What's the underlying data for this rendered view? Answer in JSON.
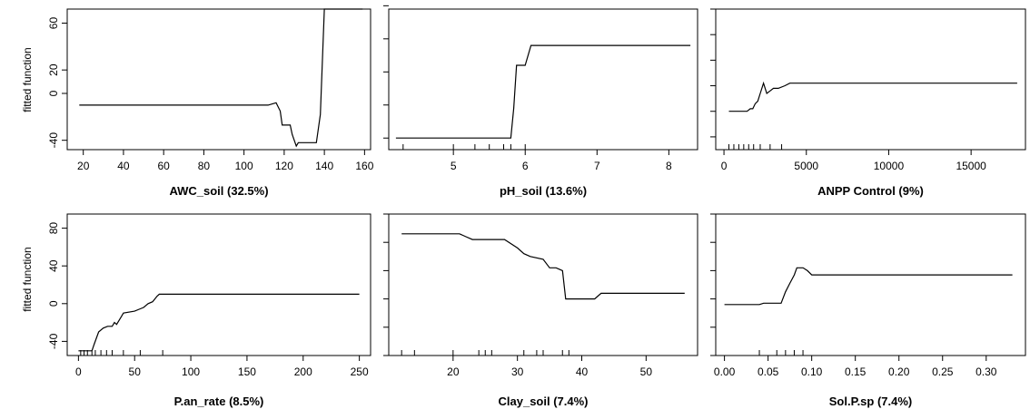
{
  "ylabel": "fitted function",
  "chart_data": [
    {
      "type": "line",
      "xlabel": "AWC_soil  (32.5%)",
      "ylabel": "fitted function",
      "xlim": [
        12,
        163
      ],
      "ylim": [
        -48,
        72
      ],
      "xticks": [
        20,
        40,
        60,
        80,
        100,
        120,
        140,
        160
      ],
      "yticks": [
        -40,
        0,
        20,
        60
      ],
      "show_yticklabels": true,
      "rug": [],
      "x": [
        18,
        112,
        116,
        118,
        119,
        123,
        124,
        126,
        127,
        128,
        130,
        136,
        138,
        140,
        159
      ],
      "y": [
        -10,
        -10,
        -8,
        -15,
        -27,
        -27,
        -35,
        -45,
        -42,
        -42,
        -42,
        -42,
        -18,
        72,
        72
      ]
    },
    {
      "type": "line",
      "xlabel": "pH_soil  (13.6%)",
      "ylabel": "",
      "xlim": [
        4.1,
        8.4
      ],
      "ylim": [
        -7,
        78
      ],
      "xticks": [
        5,
        6,
        7,
        8
      ],
      "yticks": [
        0,
        20,
        40,
        60,
        80
      ],
      "show_yticklabels": false,
      "rug": [
        4.3,
        5.0,
        5.3,
        5.5,
        5.7,
        5.8,
        6.0
      ],
      "x": [
        4.2,
        5.8,
        5.84,
        5.88,
        5.92,
        6.0,
        6.08,
        8.3
      ],
      "y": [
        0,
        0,
        18,
        44,
        44,
        44,
        56,
        56
      ]
    },
    {
      "type": "line",
      "xlabel": "ANPP Control (9%)",
      "ylabel": "",
      "xlim": [
        -500,
        18300
      ],
      "ylim": [
        -30,
        80
      ],
      "xticks": [
        0,
        5000,
        10000,
        15000
      ],
      "yticks": [
        -20,
        0,
        20,
        40,
        60,
        80
      ],
      "show_yticklabels": false,
      "rug": [
        300,
        600,
        900,
        1200,
        1500,
        1800,
        2200,
        2800,
        3500
      ],
      "x": [
        300,
        1400,
        1600,
        1750,
        1900,
        2050,
        2200,
        2400,
        2600,
        2800,
        3000,
        3300,
        3700,
        4000,
        4300,
        17800
      ],
      "y": [
        0,
        0,
        2,
        2,
        6,
        8,
        14,
        22,
        14,
        16,
        18,
        18,
        20,
        22,
        22,
        22
      ]
    },
    {
      "type": "line",
      "xlabel": "P.an_rate  (8.5%)",
      "ylabel": "fitted function",
      "xlim": [
        -10,
        260
      ],
      "ylim": [
        -55,
        95
      ],
      "xticks": [
        0,
        50,
        100,
        150,
        200,
        250
      ],
      "yticks": [
        -40,
        0,
        40,
        80
      ],
      "show_yticklabels": true,
      "rug": [
        2,
        5,
        8,
        12,
        15,
        20,
        25,
        30,
        40,
        55,
        75
      ],
      "x": [
        0,
        12,
        14,
        18,
        22,
        26,
        30,
        32,
        34,
        38,
        40,
        50,
        54,
        58,
        62,
        66,
        70,
        72,
        250
      ],
      "y": [
        -50,
        -50,
        -43,
        -30,
        -26,
        -24,
        -24,
        -20,
        -22,
        -14,
        -10,
        -8,
        -6,
        -4,
        0,
        2,
        8,
        10,
        10
      ]
    },
    {
      "type": "line",
      "xlabel": "Clay_soil  (7.4%)",
      "ylabel": "",
      "xlim": [
        10,
        58
      ],
      "ylim": [
        -20,
        80
      ],
      "xticks": [
        20,
        30,
        40,
        50
      ],
      "yticks": [
        -20,
        0,
        20,
        40,
        60,
        80
      ],
      "show_yticklabels": false,
      "rug": [
        12,
        14,
        20,
        24,
        25,
        26,
        31,
        33,
        34,
        37,
        38
      ],
      "x": [
        12,
        21,
        22,
        23,
        28,
        30,
        31,
        32,
        34,
        35,
        36,
        37,
        37.5,
        38,
        42,
        43,
        56
      ],
      "y": [
        66,
        66,
        64,
        62,
        62,
        56,
        52,
        50,
        48,
        42,
        42,
        40,
        20,
        20,
        20,
        24,
        24
      ]
    },
    {
      "type": "line",
      "xlabel": "Sol.P.sp  (7.4%)",
      "ylabel": "",
      "xlim": [
        -0.01,
        0.345
      ],
      "ylim": [
        -20,
        80
      ],
      "xticks": [
        0.0,
        0.05,
        0.1,
        0.15,
        0.2,
        0.25,
        0.3
      ],
      "xticklabels": [
        "0.00",
        "0.05",
        "0.10",
        "0.15",
        "0.20",
        "0.25",
        "0.30"
      ],
      "yticks": [
        -20,
        0,
        20,
        40,
        60,
        80
      ],
      "show_yticklabels": false,
      "rug": [
        0.04,
        0.06,
        0.07,
        0.08,
        0.09
      ],
      "x": [
        0.0,
        0.04,
        0.045,
        0.065,
        0.07,
        0.075,
        0.08,
        0.083,
        0.09,
        0.095,
        0.1,
        0.33
      ],
      "y": [
        16,
        16,
        17,
        17,
        25,
        31,
        37,
        42,
        42,
        40,
        37,
        37
      ]
    }
  ]
}
